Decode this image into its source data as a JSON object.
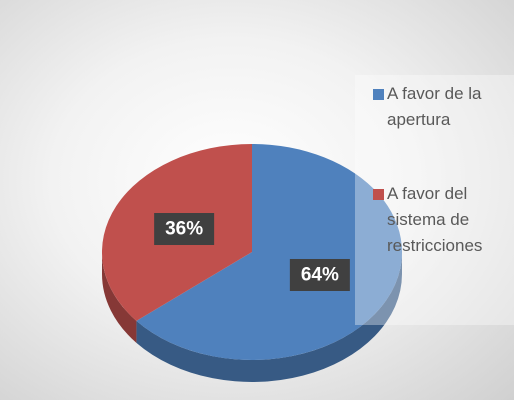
{
  "chart_data": {
    "type": "pie",
    "categories": [
      "A favor de la apertura",
      "A favor del sistema de restricciones"
    ],
    "values": [
      64,
      36
    ],
    "value_labels": [
      "64%",
      "36%"
    ],
    "colors": [
      "#4f81bd",
      "#c0504d"
    ],
    "legend": "right"
  }
}
